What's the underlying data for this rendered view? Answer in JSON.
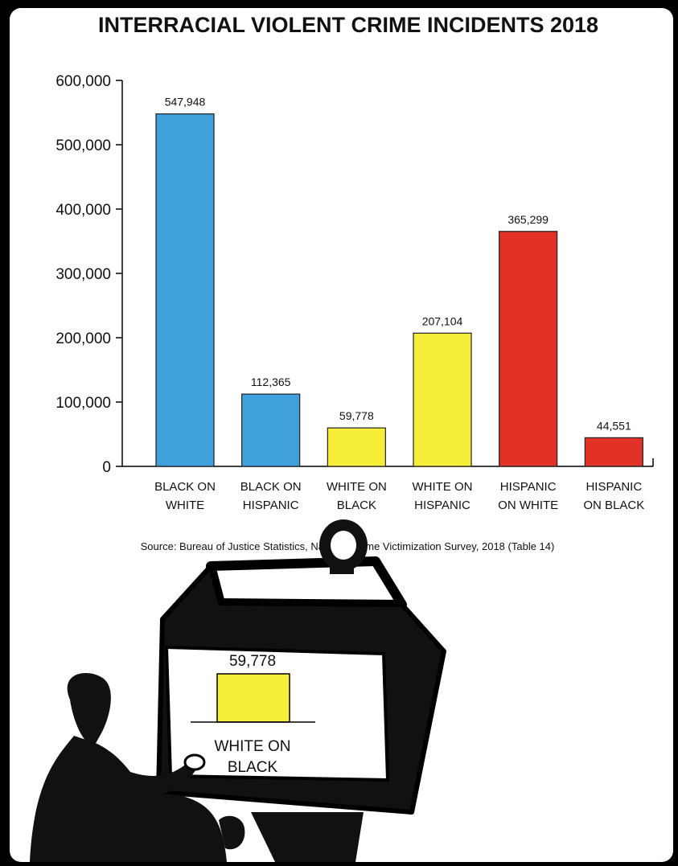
{
  "chart_data": {
    "type": "bar",
    "title": "INTERRACIAL VIOLENT CRIME INCIDENTS 2018",
    "xlabel": "",
    "ylabel": "",
    "ylim": [
      0,
      600000
    ],
    "yticks": [
      "0",
      "100,000",
      "200,000",
      "300,000",
      "400,000",
      "500,000",
      "600,000"
    ],
    "categories": [
      [
        "BLACK ON",
        "WHITE"
      ],
      [
        "BLACK ON",
        "HISPANIC"
      ],
      [
        "WHITE ON",
        "BLACK"
      ],
      [
        "WHITE ON",
        "HISPANIC"
      ],
      [
        "HISPANIC",
        "ON WHITE"
      ],
      [
        "HISPANIC",
        "ON BLACK"
      ]
    ],
    "values": [
      547948,
      112365,
      59778,
      207104,
      365299,
      44551
    ],
    "value_labels": [
      "547,948",
      "112,365",
      "59,778",
      "207,104",
      "365,299",
      "44,551"
    ],
    "colors": [
      "#3fa0dc",
      "#3fa0dc",
      "#f7ee3a",
      "#f7ee3a",
      "#e23228",
      "#e23228"
    ],
    "grid": false,
    "legend": "none",
    "source": "Source: Bureau of Justice Statistics, National Crime Victimization Survey, 2018 (Table 14)"
  },
  "tv_screen": {
    "value_label": "59,778",
    "category_line1": "WHITE ON",
    "category_line2": "BLACK",
    "bar_color": "#f7ee3a"
  }
}
